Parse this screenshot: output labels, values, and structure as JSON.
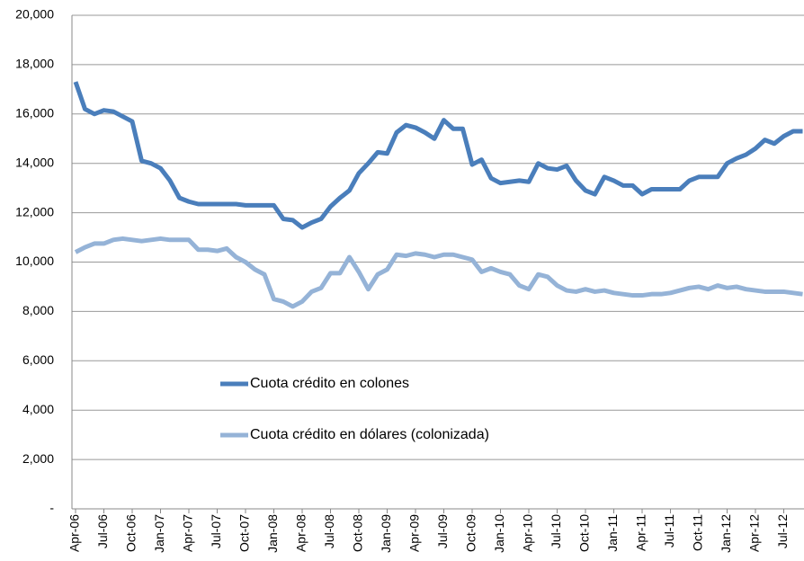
{
  "chart_data": {
    "type": "line",
    "categories": [
      "Apr-06",
      null,
      null,
      "Jul-06",
      null,
      null,
      "Oct-06",
      null,
      null,
      "Jan-07",
      null,
      null,
      "Apr-07",
      null,
      null,
      "Jul-07",
      null,
      null,
      "Oct-07",
      null,
      null,
      "Jan-08",
      null,
      null,
      "Apr-08",
      null,
      null,
      "Jul-08",
      null,
      null,
      "Oct-08",
      null,
      null,
      "Jan-09",
      null,
      null,
      "Apr-09",
      null,
      null,
      "Jul-09",
      null,
      null,
      "Oct-09",
      null,
      null,
      "Jan-10",
      null,
      null,
      "Apr-10",
      null,
      null,
      "Jul-10",
      null,
      null,
      "Oct-10",
      null,
      null,
      "Jan-11",
      null,
      null,
      "Apr-11",
      null,
      null,
      "Jul-11",
      null,
      null,
      "Oct-11",
      null,
      null,
      "Jan-12",
      null,
      null,
      "Apr-12",
      null,
      null,
      "Jul-12",
      null,
      null
    ],
    "series": [
      {
        "name": "Cuota crédito en colones",
        "color": "#4a7ebb",
        "values": [
          17300,
          16200,
          16000,
          16150,
          16100,
          15900,
          15700,
          14100,
          14000,
          13800,
          13300,
          12600,
          12450,
          12350,
          12350,
          12350,
          12350,
          12350,
          12300,
          12300,
          12300,
          12300,
          11750,
          11700,
          11400,
          11600,
          11750,
          12250,
          12600,
          12900,
          13600,
          14000,
          14450,
          14400,
          15250,
          15550,
          15450,
          15250,
          15000,
          15750,
          15400,
          15400,
          13950,
          14150,
          13400,
          13200,
          13250,
          13300,
          13250,
          14000,
          13800,
          13750,
          13900,
          13300,
          12900,
          12750,
          13450,
          13300,
          13100,
          13100,
          12750,
          12950,
          12950,
          12950,
          12950,
          13300,
          13450,
          13450,
          13450,
          14000,
          14200,
          14350,
          14600,
          14950,
          14800,
          15100,
          15300,
          15300
        ]
      },
      {
        "name": "Cuota crédito en dólares (colonizada)",
        "color": "#95b3d7",
        "values": [
          10400,
          10600,
          10750,
          10750,
          10900,
          10950,
          10900,
          10850,
          10900,
          10950,
          10900,
          10900,
          10900,
          10500,
          10500,
          10450,
          10550,
          10200,
          10000,
          9700,
          9500,
          8500,
          8400,
          8200,
          8400,
          8800,
          8950,
          9550,
          9550,
          10200,
          9600,
          8900,
          9500,
          9700,
          10300,
          10250,
          10350,
          10300,
          10200,
          10300,
          10300,
          10200,
          10100,
          9600,
          9750,
          9600,
          9500,
          9050,
          8900,
          9500,
          9400,
          9050,
          8850,
          8800,
          8900,
          8800,
          8850,
          8750,
          8700,
          8650,
          8650,
          8700,
          8700,
          8750,
          8850,
          8950,
          9000,
          8900,
          9050,
          8950,
          9000,
          8900,
          8850,
          8800,
          8800,
          8800,
          8750,
          8700
        ]
      }
    ],
    "ylim": [
      0,
      20000
    ],
    "yticks": [
      {
        "value": 0,
        "label": "-"
      },
      {
        "value": 2000,
        "label": "2,000"
      },
      {
        "value": 4000,
        "label": "4,000"
      },
      {
        "value": 6000,
        "label": "6,000"
      },
      {
        "value": 8000,
        "label": "8,000"
      },
      {
        "value": 10000,
        "label": "10,000"
      },
      {
        "value": 12000,
        "label": "12,000"
      },
      {
        "value": 14000,
        "label": "14,000"
      },
      {
        "value": 16000,
        "label": "16,000"
      },
      {
        "value": 18000,
        "label": "18,000"
      },
      {
        "value": 20000,
        "label": "20,000"
      }
    ],
    "grid": true
  }
}
